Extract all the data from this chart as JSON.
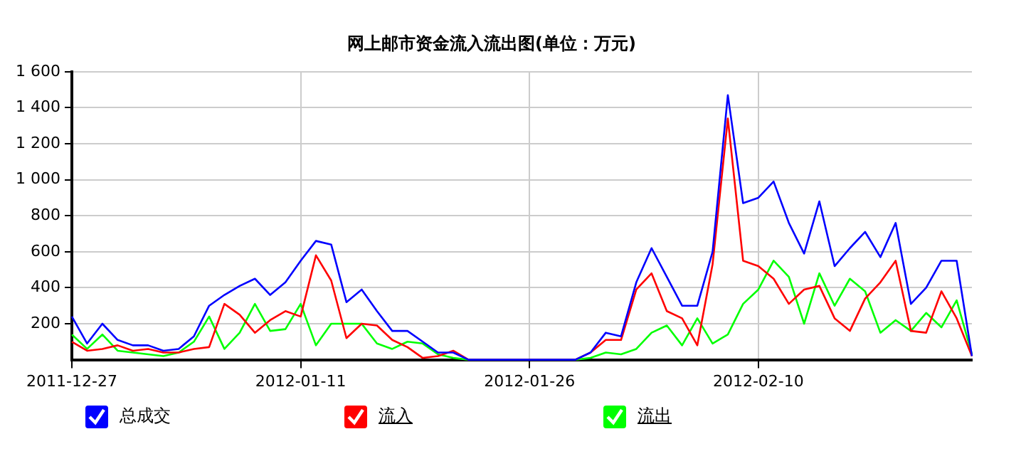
{
  "chart_data": {
    "type": "line",
    "title": "网上邮市资金流入流出图(单位：万元)",
    "x": [
      "2011-12-27",
      "2011-12-28",
      "2011-12-29",
      "2011-12-30",
      "2011-12-31",
      "2012-01-01",
      "2012-01-02",
      "2012-01-03",
      "2012-01-04",
      "2012-01-05",
      "2012-01-06",
      "2012-01-07",
      "2012-01-08",
      "2012-01-09",
      "2012-01-10",
      "2012-01-11",
      "2012-01-12",
      "2012-01-13",
      "2012-01-14",
      "2012-01-15",
      "2012-01-16",
      "2012-01-17",
      "2012-01-18",
      "2012-01-19",
      "2012-01-20",
      "2012-01-21",
      "2012-01-22",
      "2012-01-23",
      "2012-01-24",
      "2012-01-25",
      "2012-01-26",
      "2012-01-27",
      "2012-01-28",
      "2012-01-29",
      "2012-01-30",
      "2012-01-31",
      "2012-02-01",
      "2012-02-02",
      "2012-02-03",
      "2012-02-04",
      "2012-02-05",
      "2012-02-06",
      "2012-02-07",
      "2012-02-08",
      "2012-02-09",
      "2012-02-10",
      "2012-02-11",
      "2012-02-12",
      "2012-02-13",
      "2012-02-14",
      "2012-02-15",
      "2012-02-16",
      "2012-02-17",
      "2012-02-18",
      "2012-02-19",
      "2012-02-20",
      "2012-02-21",
      "2012-02-22",
      "2012-02-23",
      "2012-02-24"
    ],
    "series": [
      {
        "name": "总成交",
        "color": "#0000ff",
        "values": [
          240,
          90,
          200,
          110,
          80,
          80,
          50,
          60,
          130,
          300,
          360,
          410,
          450,
          360,
          430,
          550,
          660,
          640,
          320,
          390,
          270,
          160,
          160,
          100,
          40,
          40,
          0,
          0,
          0,
          0,
          0,
          0,
          0,
          0,
          40,
          150,
          130,
          430,
          620,
          460,
          300,
          300,
          600,
          1470,
          870,
          900,
          990,
          760,
          590,
          880,
          520,
          620,
          710,
          570,
          760,
          310,
          400,
          550,
          550,
          20
        ]
      },
      {
        "name": "流入",
        "color": "#ff0000",
        "values": [
          100,
          50,
          60,
          80,
          50,
          60,
          40,
          40,
          60,
          70,
          310,
          250,
          150,
          220,
          270,
          240,
          580,
          440,
          120,
          200,
          190,
          110,
          70,
          10,
          20,
          50,
          0,
          0,
          0,
          0,
          0,
          0,
          0,
          0,
          40,
          110,
          110,
          390,
          480,
          270,
          230,
          80,
          530,
          1340,
          550,
          520,
          450,
          310,
          390,
          410,
          230,
          160,
          340,
          430,
          550,
          160,
          150,
          380,
          230,
          20
        ]
      },
      {
        "name": "流出",
        "color": "#00ff00",
        "values": [
          140,
          60,
          140,
          50,
          40,
          30,
          20,
          40,
          100,
          240,
          60,
          150,
          310,
          160,
          170,
          310,
          80,
          200,
          200,
          200,
          90,
          60,
          100,
          90,
          30,
          10,
          0,
          0,
          0,
          0,
          0,
          0,
          0,
          0,
          10,
          40,
          30,
          60,
          150,
          190,
          80,
          230,
          90,
          140,
          310,
          390,
          550,
          460,
          200,
          480,
          300,
          450,
          380,
          150,
          220,
          160,
          260,
          180,
          330,
          30
        ]
      }
    ],
    "xlim": [
      "2011-12-27",
      "2012-02-24"
    ],
    "xticks": [
      "2011-12-27",
      "2012-01-11",
      "2012-01-26",
      "2012-02-10"
    ],
    "ylim": [
      0,
      1600
    ],
    "yticks": [
      {
        "value": 200,
        "label": "200"
      },
      {
        "value": 400,
        "label": "400"
      },
      {
        "value": 600,
        "label": "600"
      },
      {
        "value": 800,
        "label": "800"
      },
      {
        "value": 1000,
        "label": "1 000"
      },
      {
        "value": 1200,
        "label": "1 200"
      },
      {
        "value": 1400,
        "label": "1 400"
      },
      {
        "value": 1600,
        "label": "1 600"
      }
    ],
    "grid": true,
    "legend": "bottom left",
    "marker": "none",
    "line_style": "solid"
  }
}
